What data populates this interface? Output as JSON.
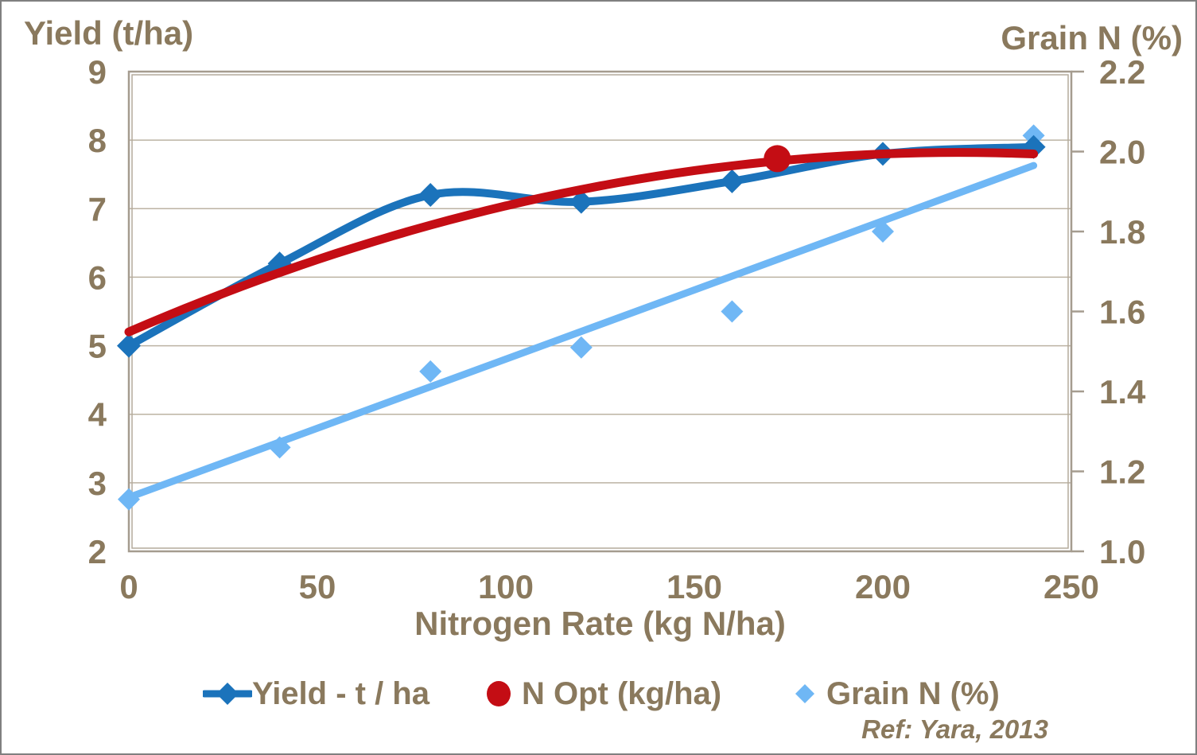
{
  "titles": {
    "left_axis": "Yield (t/ha)",
    "right_axis": "Grain N (%)",
    "x_axis": "Nitrogen Rate (kg N/ha)"
  },
  "annotation": {
    "ref": "Ref: Yara, 2013"
  },
  "colors": {
    "text_brown": "#8A795D",
    "grid": "#BCB3A3",
    "border": "#A59C8F",
    "border_inner": "#B3AA9B",
    "yield_blue": "#1B73BB",
    "nopt_red": "#C40D14",
    "grain_lightblue": "#6FB7F5",
    "frame_gray": "#808080"
  },
  "legend": {
    "items": [
      {
        "label": "Yield - t / ha",
        "marker": "line-diamond-icon",
        "color": "#1B73BB"
      },
      {
        "label": "N Opt (kg/ha)",
        "marker": "circle-icon",
        "color": "#C40D14"
      },
      {
        "label": "Grain N (%)",
        "marker": "diamond-icon",
        "color": "#6FB7F5"
      }
    ]
  },
  "chart_data": {
    "type": "line",
    "title": "",
    "xlabel": "Nitrogen Rate (kg N/ha)",
    "ylabel_left": "Yield (t/ha)",
    "ylabel_right": "Grain N (%)",
    "xlim": [
      0,
      250
    ],
    "x_ticks": [
      0,
      50,
      100,
      150,
      200,
      250
    ],
    "ylim_left": [
      2,
      9
    ],
    "y_ticks_left": [
      9,
      8,
      7,
      6,
      5,
      4,
      3,
      2
    ],
    "gridlines_left": [
      8,
      7,
      6,
      5,
      4,
      3
    ],
    "ylim_right": [
      1.0,
      2.2
    ],
    "y_ticks_right": [
      "2.2",
      "2.0",
      "1.8",
      "1.6",
      "1.4",
      "1.2",
      "1.0"
    ],
    "grid": true,
    "legend_position": "bottom",
    "series": [
      {
        "name": "Yield - t / ha",
        "axis": "left",
        "type": "smooth-line-with-markers",
        "marker": "diamond",
        "color": "#1B73BB",
        "x": [
          0,
          40,
          80,
          120,
          160,
          200,
          240
        ],
        "values": [
          5.0,
          6.2,
          7.2,
          7.1,
          7.4,
          7.8,
          7.9
        ]
      },
      {
        "name": "N Opt (kg/ha)",
        "axis": "left",
        "type": "smooth-curve-with-point",
        "color": "#C40D14",
        "curve": {
          "vertex_x": 220,
          "vertex_y": 7.82,
          "coeff": -5.41e-05,
          "x_start": 0,
          "x_end": 240
        },
        "point": {
          "x": 172,
          "y": 7.73
        }
      },
      {
        "name": "Grain N (%)",
        "axis": "right",
        "type": "scatter-with-trendline",
        "marker": "diamond",
        "color": "#6FB7F5",
        "x": [
          0,
          40,
          80,
          120,
          160,
          200,
          240
        ],
        "values": [
          1.13,
          1.26,
          1.45,
          1.51,
          1.6,
          1.8,
          2.04
        ],
        "trendline": {
          "x1": 0,
          "y1": 1.135,
          "x2": 240,
          "y2": 1.965
        }
      }
    ],
    "annotations": [
      "Ref: Yara, 2013"
    ]
  }
}
